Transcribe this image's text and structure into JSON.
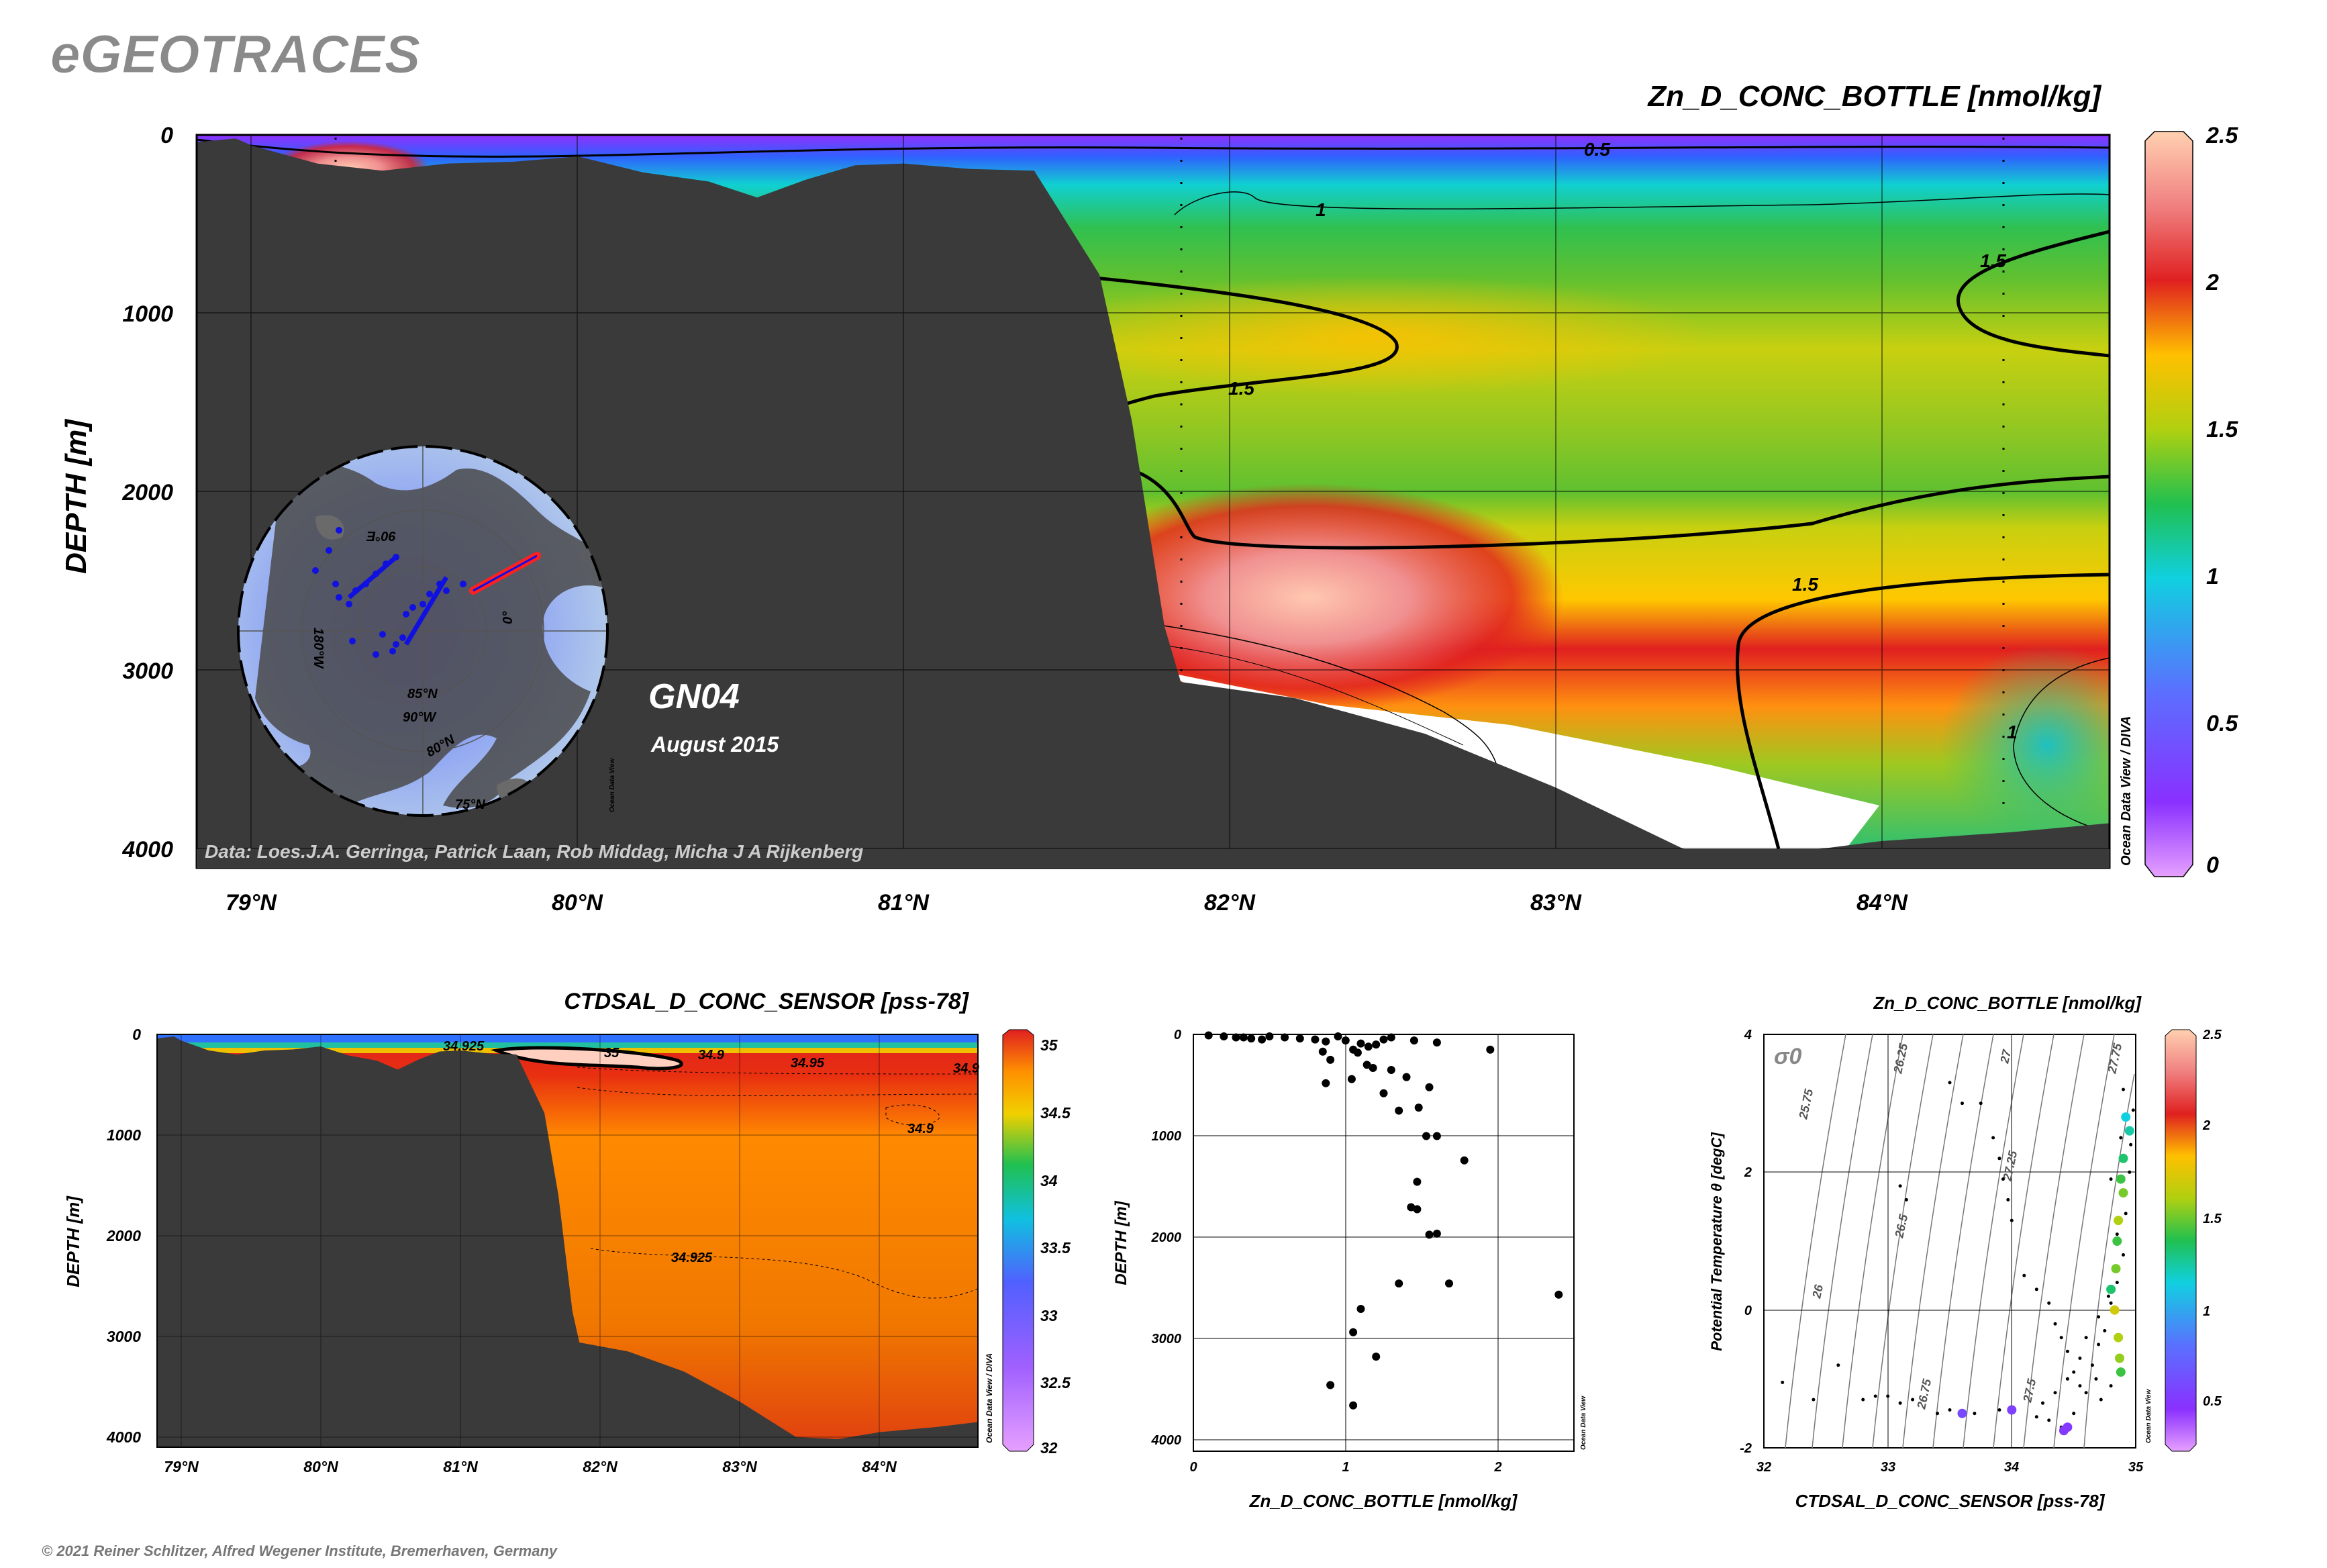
{
  "brand": "eGEOTRACES",
  "section": {
    "cruise": "GN04",
    "date": "August 2015",
    "credits": "Data: Loes.J.A. Gerringa, Patrick Laan, Rob Middag, Micha J A Rijkenberg",
    "odv_tag": "Ocean Data View / DIVA",
    "map_labels": [
      "90°E",
      "180°W",
      "0°",
      "85°N",
      "90°W",
      "80°N",
      "75°N"
    ],
    "map_tag": "Ocean Data View"
  },
  "copyright": "© 2021 Reiner Schlitzer, Alfred Wegener Institute, Bremerhaven, Germany",
  "colors": {
    "land": "#3a3a3a",
    "ocean_map": "#9fb8f5",
    "track": "#ff2020",
    "stations": "#1010e0"
  },
  "chart_data": [
    {
      "type": "heatmap",
      "title": "Zn_D_CONC_BOTTLE [nmol/kg]",
      "ylabel": "DEPTH [m]",
      "x_ticks": [
        "79°N",
        "80°N",
        "81°N",
        "82°N",
        "83°N",
        "84°N"
      ],
      "x_values": [
        79,
        80,
        81,
        82,
        83,
        84
      ],
      "xlim": [
        78.83,
        84.7
      ],
      "y_ticks": [
        "0",
        "1000",
        "2000",
        "3000",
        "4000"
      ],
      "ylim": [
        0,
        4100
      ],
      "colorbar": {
        "ticks": [
          "0",
          "0.5",
          "1",
          "1.5",
          "2",
          "2.5"
        ],
        "range": [
          0,
          2.5
        ]
      },
      "contour_labels": [
        "0.5",
        "1",
        "1.5",
        "1.5",
        "1.5",
        "1.5",
        "1"
      ],
      "bottom_depth": [
        [
          78.83,
          40
        ],
        [
          78.95,
          20
        ],
        [
          79,
          60
        ],
        [
          79.2,
          160
        ],
        [
          79.4,
          200
        ],
        [
          79.6,
          160
        ],
        [
          79.8,
          150
        ],
        [
          80,
          120
        ],
        [
          80.2,
          210
        ],
        [
          80.4,
          260
        ],
        [
          80.55,
          350
        ],
        [
          80.7,
          250
        ],
        [
          80.85,
          170
        ],
        [
          81,
          160
        ],
        [
          81.2,
          190
        ],
        [
          81.4,
          200
        ],
        [
          81.6,
          780
        ],
        [
          81.7,
          1600
        ],
        [
          81.8,
          2750
        ],
        [
          81.85,
          3060
        ],
        [
          82.2,
          3150
        ],
        [
          82.6,
          3350
        ],
        [
          83,
          3650
        ],
        [
          83.4,
          4000
        ],
        [
          83.7,
          4020
        ],
        [
          84,
          3950
        ],
        [
          84.4,
          3900
        ],
        [
          84.7,
          3850
        ]
      ],
      "grid": true
    },
    {
      "type": "heatmap",
      "title": "CTDSAL_D_CONC_SENSOR [pss-78]",
      "ylabel": "DEPTH [m]",
      "x_ticks": [
        "79°N",
        "80°N",
        "81°N",
        "82°N",
        "83°N",
        "84°N"
      ],
      "y_ticks": [
        "0",
        "1000",
        "2000",
        "3000",
        "4000"
      ],
      "colorbar": {
        "ticks": [
          "35",
          "34.5",
          "34",
          "33.5",
          "33",
          "32.5",
          "32"
        ],
        "range": [
          32,
          35
        ]
      },
      "contour_labels": [
        "34.925",
        "35",
        "34.9",
        "34.95",
        "34.9",
        "34.9",
        "34.925"
      ],
      "odv_tag": "Ocean Data View / DIVA"
    },
    {
      "type": "scatter",
      "xlabel": "Zn_D_CONC_BOTTLE [nmol/kg]",
      "ylabel": "DEPTH [m]",
      "x_ticks": [
        "0",
        "1",
        "2"
      ],
      "xlim": [
        0,
        2.5
      ],
      "y_ticks": [
        "0",
        "1000",
        "2000",
        "3000",
        "4000"
      ],
      "ylim": [
        0,
        4100
      ],
      "odv_tag": "Ocean Data View",
      "points": [
        [
          0.1,
          10
        ],
        [
          0.2,
          20
        ],
        [
          0.28,
          30
        ],
        [
          0.33,
          30
        ],
        [
          0.38,
          40
        ],
        [
          0.45,
          50
        ],
        [
          0.5,
          20
        ],
        [
          0.6,
          30
        ],
        [
          0.7,
          40
        ],
        [
          0.8,
          50
        ],
        [
          0.87,
          70
        ],
        [
          0.95,
          20
        ],
        [
          1,
          60
        ],
        [
          1.05,
          150
        ],
        [
          1.1,
          90
        ],
        [
          1.15,
          120
        ],
        [
          1.2,
          100
        ],
        [
          1.25,
          50
        ],
        [
          1.3,
          30
        ],
        [
          1.45,
          60
        ],
        [
          1.6,
          80
        ],
        [
          1.95,
          150
        ],
        [
          0.85,
          170
        ],
        [
          0.9,
          250
        ],
        [
          1.08,
          180
        ],
        [
          1.14,
          300
        ],
        [
          1.18,
          330
        ],
        [
          1.3,
          350
        ],
        [
          1.4,
          420
        ],
        [
          1.55,
          520
        ],
        [
          0.87,
          480
        ],
        [
          1.04,
          440
        ],
        [
          1.25,
          580
        ],
        [
          1.48,
          720
        ],
        [
          1.35,
          750
        ],
        [
          1.53,
          1000
        ],
        [
          1.6,
          1000
        ],
        [
          1.78,
          1240
        ],
        [
          1.47,
          1450
        ],
        [
          1.43,
          1700
        ],
        [
          1.47,
          1720
        ],
        [
          1.55,
          1970
        ],
        [
          1.6,
          1960
        ],
        [
          1.35,
          2450
        ],
        [
          1.68,
          2450
        ],
        [
          2.4,
          2560
        ],
        [
          1.1,
          2700
        ],
        [
          1.05,
          2930
        ],
        [
          1.2,
          3170
        ],
        [
          0.9,
          3450
        ],
        [
          1.05,
          3650
        ]
      ]
    },
    {
      "type": "scatter",
      "title": "Zn_D_CONC_BOTTLE [nmol/kg]",
      "xlabel": "CTDSAL_D_CONC_SENSOR [pss-78]",
      "ylabel": "Potential Temperature θ [degC]",
      "x_ticks": [
        "32",
        "33",
        "34",
        "35"
      ],
      "xlim": [
        32,
        35
      ],
      "y_ticks": [
        "4",
        "2",
        "0",
        "-2"
      ],
      "ylim": [
        -2,
        4
      ],
      "sigma_label": "σ0",
      "isopycnal_labels": [
        "25.75",
        "26",
        "26.25",
        "26.5",
        "26.75",
        "27",
        "27.25",
        "27.5",
        "27.75"
      ],
      "colorbar": {
        "ticks": [
          "2.5",
          "2",
          "1.5",
          "1",
          "0.5"
        ],
        "range": [
          0.25,
          2.5
        ]
      },
      "odv_tag": "Ocean Data View",
      "colored_points": [
        [
          34.92,
          2.8,
          1.0
        ],
        [
          34.95,
          2.6,
          1.1
        ],
        [
          34.9,
          2.2,
          1.2
        ],
        [
          34.88,
          1.9,
          1.3
        ],
        [
          34.9,
          1.7,
          1.4
        ],
        [
          34.86,
          1.3,
          1.5
        ],
        [
          34.85,
          1.0,
          1.3
        ],
        [
          34.84,
          0.6,
          1.4
        ],
        [
          34.8,
          0.3,
          1.2
        ],
        [
          34.83,
          0.0,
          1.6
        ],
        [
          34.86,
          -0.4,
          1.5
        ],
        [
          34.87,
          -0.7,
          1.45
        ],
        [
          34.88,
          -0.9,
          1.3
        ],
        [
          33.6,
          -1.5,
          0.4
        ],
        [
          34.0,
          -1.45,
          0.35
        ],
        [
          34.45,
          -1.7,
          0.3
        ],
        [
          34.42,
          -1.75,
          0.3
        ]
      ],
      "black_points": [
        [
          32.15,
          -1.05
        ],
        [
          32.4,
          -1.3
        ],
        [
          32.6,
          -0.8
        ],
        [
          32.8,
          -1.3
        ],
        [
          32.9,
          -1.25
        ],
        [
          33.0,
          -1.25
        ],
        [
          33.1,
          -1.35
        ],
        [
          33.2,
          -1.3
        ],
        [
          33.4,
          -1.5
        ],
        [
          33.5,
          -1.45
        ],
        [
          33.7,
          -1.5
        ],
        [
          33.9,
          -1.45
        ],
        [
          34.2,
          -1.55
        ],
        [
          34.3,
          -1.6
        ],
        [
          34.4,
          -1.7
        ],
        [
          34.5,
          -1.5
        ],
        [
          33.1,
          1.8
        ],
        [
          33.15,
          1.6
        ],
        [
          33.5,
          3.3
        ],
        [
          33.6,
          3.0
        ],
        [
          33.75,
          3.0
        ],
        [
          33.85,
          2.5
        ],
        [
          33.9,
          2.2
        ],
        [
          33.93,
          1.9
        ],
        [
          33.97,
          1.6
        ],
        [
          34.0,
          1.3
        ],
        [
          34.1,
          0.5
        ],
        [
          34.2,
          0.3
        ],
        [
          34.3,
          0.1
        ],
        [
          34.35,
          -0.2
        ],
        [
          34.4,
          -0.4
        ],
        [
          34.45,
          -0.6
        ],
        [
          34.5,
          -0.9
        ],
        [
          34.55,
          -1.1
        ],
        [
          34.6,
          -1.2
        ],
        [
          34.65,
          -0.8
        ],
        [
          34.7,
          -0.5
        ],
        [
          34.75,
          -0.3
        ],
        [
          34.8,
          0.1
        ],
        [
          34.85,
          0.4
        ],
        [
          34.9,
          0.8
        ],
        [
          34.92,
          1.4
        ],
        [
          34.95,
          2.0
        ],
        [
          34.96,
          2.4
        ],
        [
          34.98,
          2.9
        ],
        [
          34.9,
          3.2
        ],
        [
          34.88,
          2.5
        ],
        [
          34.8,
          1.9
        ],
        [
          34.85,
          1.1
        ],
        [
          34.78,
          0.2
        ],
        [
          34.7,
          -0.1
        ],
        [
          34.6,
          -0.4
        ],
        [
          34.55,
          -0.7
        ],
        [
          34.45,
          -1.0
        ],
        [
          34.35,
          -1.2
        ],
        [
          34.25,
          -1.35
        ],
        [
          34.68,
          -1.0
        ],
        [
          34.72,
          -1.3
        ],
        [
          34.8,
          -1.1
        ]
      ]
    }
  ]
}
